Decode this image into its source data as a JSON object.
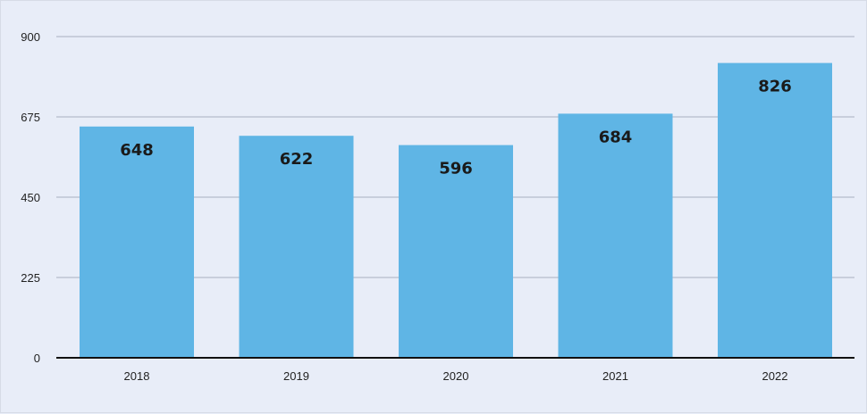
{
  "chart_data": {
    "type": "bar",
    "title": "",
    "xlabel": "",
    "ylabel": "",
    "categories": [
      "2018",
      "2019",
      "2020",
      "2021",
      "2022"
    ],
    "values": [
      648,
      622,
      596,
      684,
      826
    ],
    "ylim": [
      0,
      900
    ],
    "yticks": [
      0,
      225,
      450,
      675,
      900
    ],
    "grid": true,
    "legend": "none",
    "colors": {
      "bar": "#5fb5e5",
      "background": "#e8edf8",
      "grid": "#a8b0c0",
      "axis": "#111111"
    }
  }
}
